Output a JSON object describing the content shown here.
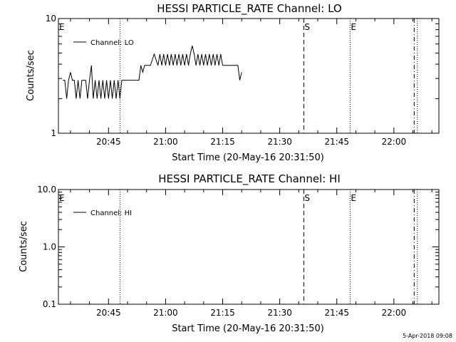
{
  "chart_data": [
    {
      "type": "line",
      "title": "HESSI PARTICLE_RATE Channel: LO",
      "xlabel": "Start Time (20-May-16 20:31:50)",
      "ylabel": "Counts/sec",
      "yscale": "log",
      "ylim": [
        1,
        10
      ],
      "xlim": [
        "20:31:50",
        "22:11:50"
      ],
      "ytick_labels": [
        "1",
        "10"
      ],
      "xtick_labels": [
        "20:45",
        "21:00",
        "21:15",
        "21:30",
        "21:45",
        "22:00"
      ],
      "legend": "top-left",
      "series": [
        {
          "name": "Channel: LO",
          "x": [
            "20:33:00",
            "20:33:30",
            "20:34:00",
            "20:34:30",
            "20:35:00",
            "20:35:30",
            "20:36:00",
            "20:36:30",
            "20:37:00",
            "20:37:30",
            "20:38:00",
            "20:38:30",
            "20:39:00",
            "20:39:30",
            "20:40:00",
            "20:40:30",
            "20:41:00",
            "20:41:30",
            "20:42:00",
            "20:42:30",
            "20:43:00",
            "20:43:30",
            "20:44:00",
            "20:44:30",
            "20:45:00",
            "20:45:30",
            "20:46:00",
            "20:46:30",
            "20:47:00",
            "20:47:30",
            "20:48:00",
            "20:48:30",
            "20:49:00",
            "20:50:00",
            "20:51:00",
            "20:52:00",
            "20:53:00",
            "20:53:30",
            "20:54:00",
            "20:54:30",
            "20:55:00",
            "20:56:00",
            "20:57:00",
            "20:58:00",
            "20:58:30",
            "20:59:00",
            "20:59:30",
            "21:00:00",
            "21:00:30",
            "21:01:00",
            "21:01:30",
            "21:02:00",
            "21:02:30",
            "21:03:00",
            "21:03:30",
            "21:04:00",
            "21:04:30",
            "21:05:00",
            "21:05:30",
            "21:06:00",
            "21:06:30",
            "21:07:00",
            "21:07:30",
            "21:08:00",
            "21:08:30",
            "21:09:00",
            "21:09:30",
            "21:10:00",
            "21:10:30",
            "21:11:00",
            "21:11:30",
            "21:12:00",
            "21:12:30",
            "21:13:00",
            "21:13:30",
            "21:14:00",
            "21:14:30",
            "21:15:00",
            "21:15:30",
            "21:16:00",
            "21:16:30",
            "21:17:00",
            "21:17:30",
            "21:18:00",
            "21:18:30",
            "21:19:00",
            "21:19:30",
            "21:20:00"
          ],
          "y": [
            2.9,
            2.9,
            2.0,
            2.9,
            3.4,
            2.9,
            2.9,
            2.0,
            2.9,
            2.0,
            2.9,
            2.9,
            2.9,
            2.0,
            2.9,
            3.9,
            2.0,
            2.9,
            2.0,
            2.9,
            2.0,
            2.9,
            2.0,
            2.9,
            2.0,
            2.9,
            2.0,
            2.9,
            2.0,
            2.9,
            2.0,
            2.9,
            2.9,
            2.9,
            2.9,
            2.9,
            2.9,
            3.9,
            3.4,
            3.9,
            3.9,
            3.9,
            4.9,
            3.9,
            4.9,
            3.9,
            4.9,
            3.9,
            4.9,
            3.9,
            4.9,
            3.9,
            4.9,
            3.9,
            4.9,
            3.9,
            4.9,
            3.9,
            4.9,
            3.9,
            4.9,
            5.8,
            4.9,
            3.9,
            4.9,
            3.9,
            4.9,
            3.9,
            4.9,
            3.9,
            4.9,
            3.9,
            4.9,
            3.9,
            4.9,
            3.9,
            4.9,
            3.9,
            3.9,
            3.9,
            3.9,
            3.9,
            3.9,
            3.9,
            3.9,
            3.9,
            2.9,
            3.4
          ]
        }
      ],
      "annotations": [
        {
          "text": "E",
          "x": "20:31:50"
        },
        {
          "text": "S",
          "x": "21:36:20"
        },
        {
          "text": "E",
          "x": "21:48:30"
        }
      ],
      "vlines": [
        {
          "x": "20:48:00",
          "style": "dotted"
        },
        {
          "x": "21:36:20",
          "style": "dashed"
        },
        {
          "x": "21:48:30",
          "style": "dotted"
        },
        {
          "x": "22:05:20",
          "style": "dashdot"
        },
        {
          "x": "22:06:10",
          "style": "dotted"
        }
      ]
    },
    {
      "type": "line",
      "title": "HESSI PARTICLE_RATE Channel: HI",
      "xlabel": "Start Time (20-May-16 20:31:50)",
      "ylabel": "Counts/sec",
      "yscale": "log",
      "ylim": [
        0.1,
        10.0
      ],
      "xlim": [
        "20:31:50",
        "22:11:50"
      ],
      "ytick_labels": [
        "0.1",
        "1.0",
        "10.0"
      ],
      "xtick_labels": [
        "20:45",
        "21:00",
        "21:15",
        "21:30",
        "21:45",
        "22:00"
      ],
      "legend": "top-left",
      "series": [
        {
          "name": "Channel: HI",
          "x": [],
          "y": []
        }
      ],
      "annotations": [
        {
          "text": "E",
          "x": "20:31:50"
        },
        {
          "text": "S",
          "x": "21:36:20"
        },
        {
          "text": "E",
          "x": "21:48:30"
        }
      ],
      "vlines": [
        {
          "x": "20:48:00",
          "style": "dotted"
        },
        {
          "x": "21:36:20",
          "style": "dashed"
        },
        {
          "x": "21:48:30",
          "style": "dotted"
        },
        {
          "x": "22:05:20",
          "style": "dashdot"
        },
        {
          "x": "22:06:10",
          "style": "dotted"
        }
      ]
    }
  ],
  "footer": {
    "timestamp": "5-Apr-2018 09:08"
  }
}
